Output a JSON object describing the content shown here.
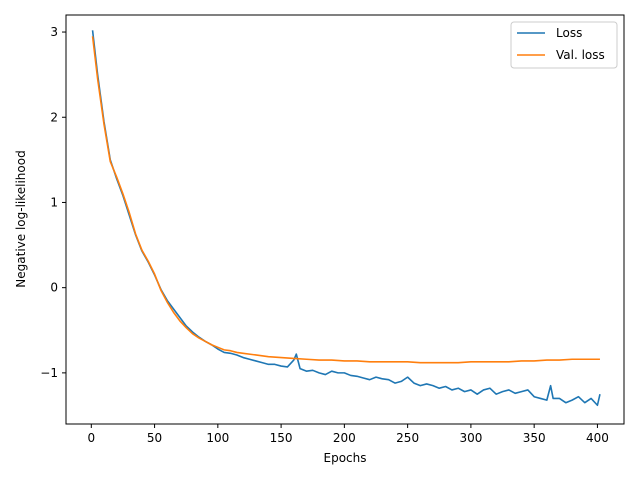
{
  "chart_data": {
    "type": "line",
    "title": "",
    "xlabel": "Epochs",
    "ylabel": "Negative log-likelihood",
    "xlim": [
      -20,
      421
    ],
    "ylim": [
      -1.6,
      3.2
    ],
    "xticks": [
      0,
      50,
      100,
      150,
      200,
      250,
      300,
      350,
      400
    ],
    "yticks": [
      3,
      2,
      1,
      0,
      -1
    ],
    "ytick_labels": [
      "3",
      "2",
      "1",
      "0",
      "−1"
    ],
    "grid": false,
    "legend": "top-right",
    "series": [
      {
        "name": "Loss",
        "color": "#1f77b4",
        "x": [
          1,
          5,
          10,
          15,
          20,
          25,
          30,
          35,
          40,
          45,
          50,
          55,
          60,
          65,
          70,
          75,
          80,
          85,
          90,
          95,
          100,
          105,
          110,
          115,
          120,
          125,
          130,
          135,
          140,
          145,
          150,
          155,
          160,
          162,
          165,
          170,
          175,
          180,
          185,
          190,
          195,
          200,
          205,
          210,
          215,
          220,
          225,
          230,
          235,
          240,
          245,
          250,
          255,
          260,
          265,
          270,
          275,
          280,
          285,
          290,
          295,
          300,
          305,
          310,
          315,
          320,
          325,
          330,
          335,
          340,
          345,
          350,
          355,
          360,
          363,
          365,
          370,
          375,
          380,
          385,
          390,
          395,
          400,
          402
        ],
        "y": [
          3.02,
          2.5,
          1.95,
          1.5,
          1.28,
          1.08,
          0.85,
          0.62,
          0.43,
          0.3,
          0.15,
          -0.02,
          -0.15,
          -0.25,
          -0.35,
          -0.45,
          -0.52,
          -0.58,
          -0.63,
          -0.67,
          -0.72,
          -0.76,
          -0.77,
          -0.79,
          -0.82,
          -0.84,
          -0.86,
          -0.88,
          -0.9,
          -0.9,
          -0.92,
          -0.93,
          -0.85,
          -0.78,
          -0.95,
          -0.98,
          -0.97,
          -1.0,
          -1.02,
          -0.98,
          -1.0,
          -1.0,
          -1.03,
          -1.04,
          -1.06,
          -1.08,
          -1.05,
          -1.07,
          -1.08,
          -1.12,
          -1.1,
          -1.05,
          -1.12,
          -1.15,
          -1.13,
          -1.15,
          -1.18,
          -1.16,
          -1.2,
          -1.18,
          -1.22,
          -1.2,
          -1.25,
          -1.2,
          -1.18,
          -1.25,
          -1.22,
          -1.2,
          -1.24,
          -1.22,
          -1.2,
          -1.28,
          -1.3,
          -1.32,
          -1.15,
          -1.3,
          -1.3,
          -1.35,
          -1.32,
          -1.28,
          -1.35,
          -1.3,
          -1.38,
          -1.25
        ]
      },
      {
        "name": "Val. loss",
        "color": "#ff7f0e",
        "x": [
          1,
          5,
          10,
          15,
          20,
          25,
          30,
          35,
          40,
          45,
          50,
          55,
          60,
          65,
          70,
          75,
          80,
          85,
          90,
          95,
          100,
          105,
          110,
          115,
          120,
          130,
          140,
          150,
          160,
          170,
          180,
          190,
          200,
          210,
          220,
          230,
          240,
          250,
          260,
          270,
          280,
          290,
          300,
          310,
          320,
          330,
          340,
          350,
          360,
          370,
          380,
          390,
          400,
          402
        ],
        "y": [
          2.95,
          2.45,
          1.92,
          1.48,
          1.3,
          1.1,
          0.88,
          0.63,
          0.44,
          0.31,
          0.16,
          -0.03,
          -0.17,
          -0.29,
          -0.39,
          -0.47,
          -0.54,
          -0.59,
          -0.63,
          -0.67,
          -0.7,
          -0.73,
          -0.74,
          -0.76,
          -0.77,
          -0.79,
          -0.81,
          -0.82,
          -0.83,
          -0.84,
          -0.85,
          -0.85,
          -0.86,
          -0.86,
          -0.87,
          -0.87,
          -0.87,
          -0.87,
          -0.88,
          -0.88,
          -0.88,
          -0.88,
          -0.87,
          -0.87,
          -0.87,
          -0.87,
          -0.86,
          -0.86,
          -0.85,
          -0.85,
          -0.84,
          -0.84,
          -0.84,
          -0.84
        ]
      }
    ]
  }
}
